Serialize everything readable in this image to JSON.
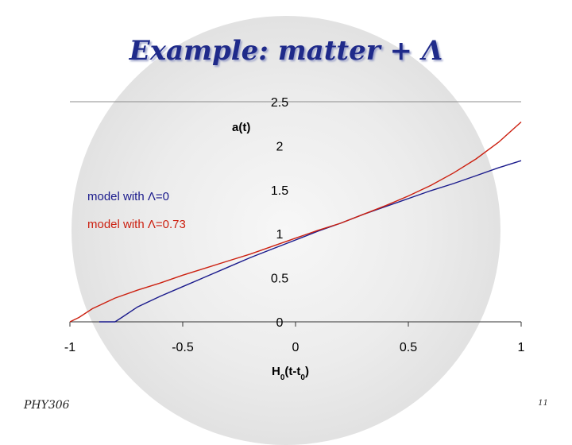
{
  "title_text": "Example: matter + Λ",
  "footer": {
    "course": "PHY306",
    "page": "11"
  },
  "chart_data": {
    "type": "line",
    "xlabel_main": "H",
    "xlabel_sub1": "0",
    "xlabel_mid": "(t-t",
    "xlabel_sub2": "0",
    "xlabel_end": ")",
    "ylabel": "a(t)",
    "xlim": [
      -1,
      1
    ],
    "ylim": [
      0,
      2.5
    ],
    "x_ticks": [
      {
        "value": -1,
        "label": "-1"
      },
      {
        "value": -0.5,
        "label": "-0.5"
      },
      {
        "value": 0,
        "label": "0"
      },
      {
        "value": 0.5,
        "label": "0.5"
      },
      {
        "value": 1,
        "label": "1"
      }
    ],
    "y_ticks": [
      {
        "value": 0,
        "label": "0"
      },
      {
        "value": 0.5,
        "label": "0.5"
      },
      {
        "value": 1,
        "label": "1"
      },
      {
        "value": 1.5,
        "label": "1.5"
      },
      {
        "value": 2,
        "label": "2"
      },
      {
        "value": 2.5,
        "label": "2.5"
      }
    ],
    "series": [
      {
        "name": "model with Λ=0",
        "color": "#1a1a8c",
        "x": [
          -0.87,
          -0.8,
          -0.77,
          -0.7,
          -0.6,
          -0.5,
          -0.4,
          -0.3,
          -0.2,
          -0.1,
          0,
          0.1,
          0.2,
          0.3,
          0.4,
          0.5,
          0.6,
          0.7,
          0.8,
          0.9,
          1.0
        ],
        "y": [
          0,
          0,
          0.05,
          0.17,
          0.29,
          0.4,
          0.51,
          0.62,
          0.73,
          0.83,
          0.93,
          1.03,
          1.12,
          1.22,
          1.31,
          1.4,
          1.49,
          1.57,
          1.66,
          1.75,
          1.83
        ]
      },
      {
        "name": "model with Λ=0.73",
        "color": "#cc2010",
        "x": [
          -1.0,
          -0.96,
          -0.9,
          -0.8,
          -0.7,
          -0.6,
          -0.5,
          -0.4,
          -0.3,
          -0.2,
          -0.1,
          0,
          0.1,
          0.2,
          0.3,
          0.4,
          0.5,
          0.6,
          0.7,
          0.8,
          0.9,
          1.0
        ],
        "y": [
          0,
          0.05,
          0.15,
          0.27,
          0.36,
          0.44,
          0.53,
          0.61,
          0.69,
          0.77,
          0.86,
          0.95,
          1.04,
          1.12,
          1.22,
          1.32,
          1.43,
          1.55,
          1.69,
          1.85,
          2.04,
          2.27
        ]
      }
    ],
    "grid": false
  }
}
